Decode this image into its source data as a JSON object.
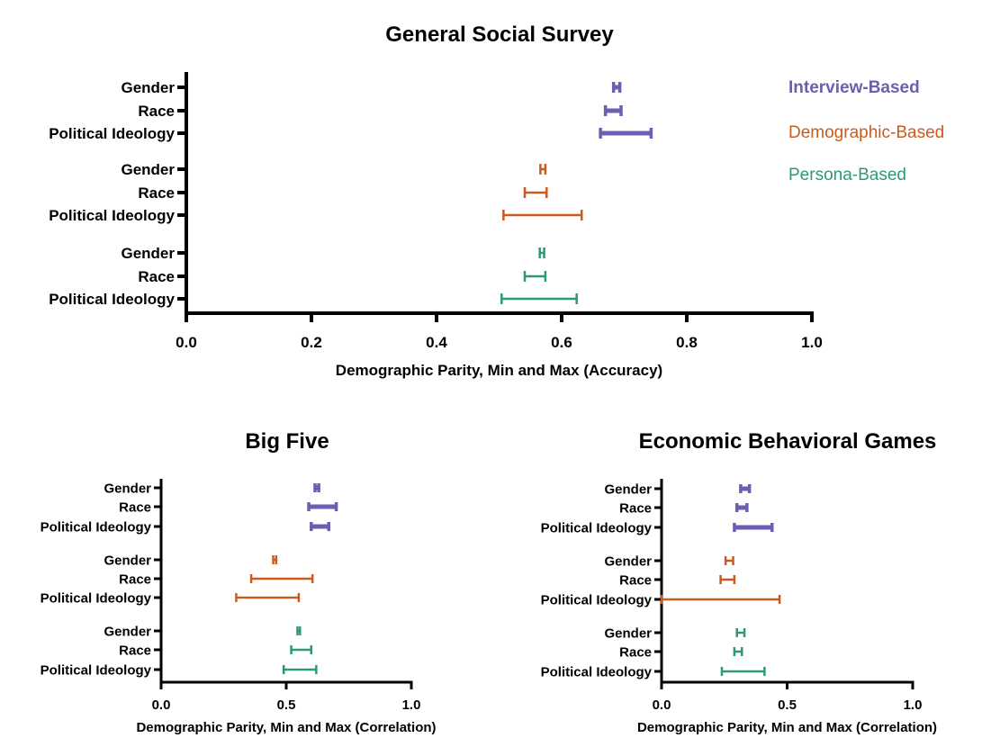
{
  "chart_data": [
    {
      "type": "range",
      "title": "General Social Survey",
      "xlabel": "Demographic Parity, Min and Max (Accuracy)",
      "xlim": [
        0,
        1
      ],
      "xticks": [
        "0.0",
        "0.2",
        "0.4",
        "0.6",
        "0.8",
        "1.0"
      ],
      "xtick_values": [
        0,
        0.2,
        0.4,
        0.6,
        0.8,
        1.0
      ],
      "legend": "right",
      "groups": [
        {
          "name": "Interview-Based",
          "color": "#6b5fb1",
          "rows": [
            {
              "label": "Gender",
              "min": 0.683,
              "max": 0.693
            },
            {
              "label": "Race",
              "min": 0.67,
              "max": 0.695
            },
            {
              "label": "Political Ideology",
              "min": 0.662,
              "max": 0.743
            }
          ]
        },
        {
          "name": "Demographic-Based",
          "color": "#cc5a1e",
          "rows": [
            {
              "label": "Gender",
              "min": 0.566,
              "max": 0.574
            },
            {
              "label": "Race",
              "min": 0.541,
              "max": 0.576
            },
            {
              "label": "Political Ideology",
              "min": 0.507,
              "max": 0.632
            }
          ]
        },
        {
          "name": "Persona-Based",
          "color": "#2e9a6e",
          "rows": [
            {
              "label": "Gender",
              "min": 0.565,
              "max": 0.572
            },
            {
              "label": "Race",
              "min": 0.541,
              "max": 0.574
            },
            {
              "label": "Political Ideology",
              "min": 0.504,
              "max": 0.624
            }
          ]
        }
      ]
    },
    {
      "type": "range",
      "title": "Big Five",
      "xlabel": "Demographic Parity, Min and Max (Correlation)",
      "xlim": [
        0,
        1
      ],
      "xticks": [
        "0.0",
        "0.5",
        "1.0"
      ],
      "xtick_values": [
        0,
        0.5,
        1.0
      ],
      "groups": [
        {
          "name": "Interview-Based",
          "color": "#6b5fb1",
          "rows": [
            {
              "label": "Gender",
              "min": 0.615,
              "max": 0.63
            },
            {
              "label": "Race",
              "min": 0.59,
              "max": 0.7
            },
            {
              "label": "Political Ideology",
              "min": 0.6,
              "max": 0.67
            }
          ]
        },
        {
          "name": "Demographic-Based",
          "color": "#cc5a1e",
          "rows": [
            {
              "label": "Gender",
              "min": 0.448,
              "max": 0.46
            },
            {
              "label": "Race",
              "min": 0.36,
              "max": 0.605
            },
            {
              "label": "Political Ideology",
              "min": 0.3,
              "max": 0.55
            }
          ]
        },
        {
          "name": "Persona-Based",
          "color": "#2e9a6e",
          "rows": [
            {
              "label": "Gender",
              "min": 0.545,
              "max": 0.555
            },
            {
              "label": "Race",
              "min": 0.52,
              "max": 0.6
            },
            {
              "label": "Political Ideology",
              "min": 0.49,
              "max": 0.62
            }
          ]
        }
      ]
    },
    {
      "type": "range",
      "title": "Economic Behavioral Games",
      "xlabel": "Demographic Parity, Min and Max (Correlation)",
      "xlim": [
        0,
        1
      ],
      "xticks": [
        "0.0",
        "0.5",
        "1.0"
      ],
      "xtick_values": [
        0,
        0.5,
        1.0
      ],
      "groups": [
        {
          "name": "Interview-Based",
          "color": "#6b5fb1",
          "rows": [
            {
              "label": "Gender",
              "min": 0.315,
              "max": 0.35
            },
            {
              "label": "Race",
              "min": 0.3,
              "max": 0.34
            },
            {
              "label": "Political Ideology",
              "min": 0.29,
              "max": 0.44
            }
          ]
        },
        {
          "name": "Demographic-Based",
          "color": "#cc5a1e",
          "rows": [
            {
              "label": "Gender",
              "min": 0.255,
              "max": 0.285
            },
            {
              "label": "Race",
              "min": 0.235,
              "max": 0.29
            },
            {
              "label": "Political Ideology",
              "min": 0.0,
              "max": 0.47
            }
          ]
        },
        {
          "name": "Persona-Based",
          "color": "#2e9a6e",
          "rows": [
            {
              "label": "Gender",
              "min": 0.3,
              "max": 0.33
            },
            {
              "label": "Race",
              "min": 0.29,
              "max": 0.32
            },
            {
              "label": "Political Ideology",
              "min": 0.24,
              "max": 0.41
            }
          ]
        }
      ]
    }
  ]
}
